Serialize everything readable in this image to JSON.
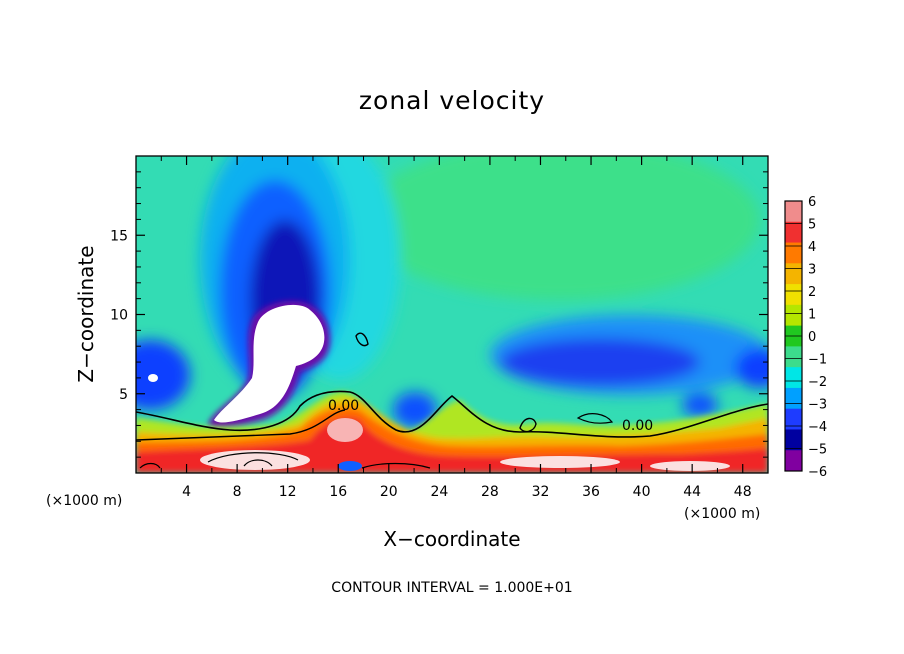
{
  "chart_data": {
    "type": "heatmap",
    "title": "zonal velocity",
    "xlabel": "X−coordinate",
    "ylabel": "Z−coordinate",
    "x_unit": "(×1000 m)",
    "y_unit": "(×1000 m)",
    "xlim": [
      0,
      50
    ],
    "ylim": [
      0,
      20
    ],
    "x_ticks": [
      "4",
      "8",
      "12",
      "16",
      "20",
      "24",
      "28",
      "32",
      "36",
      "40",
      "44",
      "48"
    ],
    "y_ticks": [
      "5",
      "10",
      "15"
    ],
    "colorbar": {
      "ticks": [
        "6",
        "5",
        "4",
        "3",
        "2",
        "1",
        "0",
        "−1",
        "−2",
        "−3",
        "−4",
        "−5",
        "−6"
      ],
      "colors": [
        "#f08c8c",
        "#f03030",
        "#ff7a00",
        "#f4b400",
        "#f0e000",
        "#b4e600",
        "#20c820",
        "#3cdc8c",
        "#00e6e6",
        "#00a0ff",
        "#1e3cff",
        "#0000a0",
        "#8000a0"
      ]
    },
    "contour_labels": [
      "0.00",
      "0.00"
    ],
    "footer": "CONTOUR INTERVAL = 1.000E+01"
  }
}
